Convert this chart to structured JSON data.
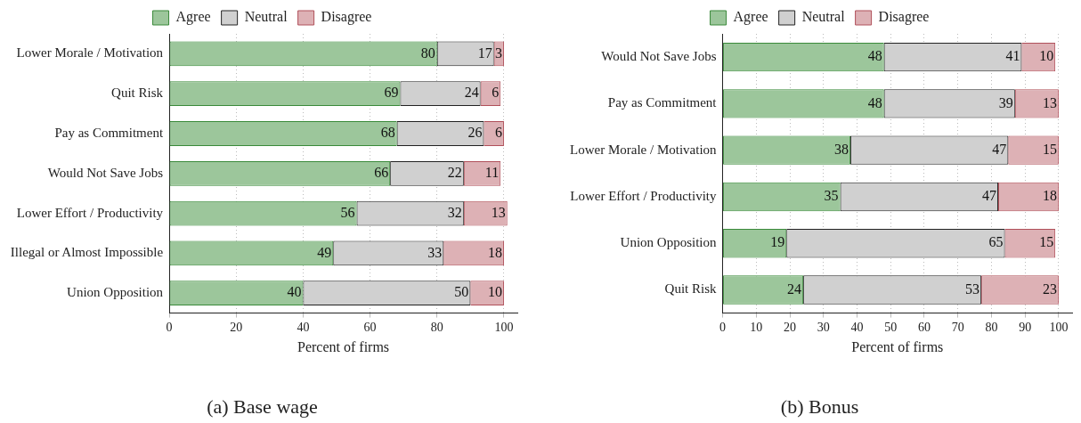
{
  "chart_data": [
    {
      "type": "bar",
      "orientation": "horizontal",
      "stacked": true,
      "title": "(a) Base wage",
      "xlabel": "Percent of firms",
      "categories": [
        "Lower Morale / Motivation",
        "Quit Risk",
        "Pay as Commitment",
        "Would Not Save Jobs",
        "Lower Effort / Productivity",
        "Illegal or Almost Impossible",
        "Union Opposition"
      ],
      "series": [
        {
          "name": "Agree",
          "color": "#9cc69b",
          "values": [
            80,
            69,
            68,
            66,
            56,
            49,
            40
          ]
        },
        {
          "name": "Neutral",
          "color": "#d0d0d0",
          "values": [
            17,
            24,
            26,
            22,
            32,
            33,
            50
          ]
        },
        {
          "name": "Disagree",
          "color": "#ddb1b5",
          "values": [
            3,
            6,
            6,
            11,
            13,
            18,
            10
          ]
        }
      ],
      "xlim": [
        0,
        104
      ],
      "xticks": [
        0,
        20,
        40,
        60,
        80,
        100
      ],
      "grid": "x",
      "legend": "top",
      "data_labels": true
    },
    {
      "type": "bar",
      "orientation": "horizontal",
      "stacked": true,
      "title": "(b) Bonus",
      "xlabel": "Percent of firms",
      "categories": [
        "Would Not Save Jobs",
        "Pay as Commitment",
        "Lower Morale / Motivation",
        "Lower Effort / Productivity",
        "Union Opposition",
        "Quit Risk"
      ],
      "series": [
        {
          "name": "Agree",
          "color": "#9cc69b",
          "values": [
            48,
            48,
            38,
            35,
            19,
            24
          ]
        },
        {
          "name": "Neutral",
          "color": "#d0d0d0",
          "values": [
            41,
            39,
            47,
            47,
            65,
            53
          ]
        },
        {
          "name": "Disagree",
          "color": "#ddb1b5",
          "values": [
            10,
            13,
            15,
            18,
            15,
            23
          ]
        }
      ],
      "xlim": [
        0,
        104
      ],
      "xticks": [
        0,
        10,
        20,
        30,
        40,
        50,
        60,
        70,
        80,
        90,
        100
      ],
      "grid": "x",
      "legend": "top",
      "data_labels": true
    }
  ]
}
